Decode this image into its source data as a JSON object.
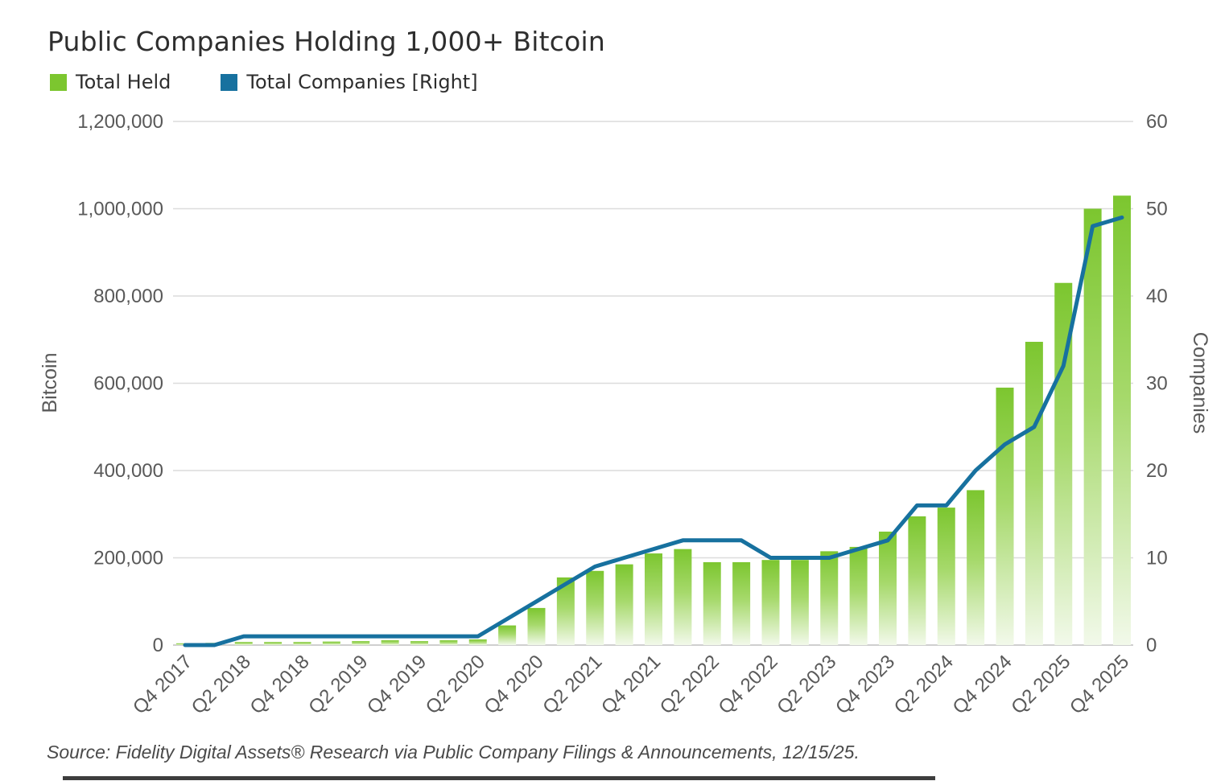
{
  "title": "Public Companies Holding 1,000+ Bitcoin",
  "legend": {
    "items": [
      {
        "label": "Total Held",
        "color": "#7cc62f"
      },
      {
        "label": "Total Companies [Right]",
        "color": "#17719f"
      }
    ]
  },
  "source": "Source: Fidelity Digital Assets® Research via Public Company Filings & Announcements, 12/15/25.",
  "colors": {
    "bar_top": "#7cc62f",
    "bar_mid": "#a6d96b",
    "bar_bottom": "#f2f9ea",
    "line": "#17719f",
    "gridline": "#dcdcdc",
    "baseline": "#bfbfbf",
    "tick_text": "#595959"
  },
  "chart_data": {
    "type": "bar",
    "subtype": "bar+line dual axis",
    "title": "Public Companies Holding 1,000+ Bitcoin",
    "grid": "horizontal",
    "legend_position": "top-left",
    "categories": [
      "Q4 2017",
      "Q1 2018",
      "Q2 2018",
      "Q3 2018",
      "Q4 2018",
      "Q1 2019",
      "Q2 2019",
      "Q3 2019",
      "Q4 2019",
      "Q1 2020",
      "Q2 2020",
      "Q3 2020",
      "Q4 2020",
      "Q1 2021",
      "Q2 2021",
      "Q3 2021",
      "Q4 2021",
      "Q1 2022",
      "Q2 2022",
      "Q3 2022",
      "Q4 2022",
      "Q1 2023",
      "Q2 2023",
      "Q3 2023",
      "Q4 2023",
      "Q1 2024",
      "Q2 2024",
      "Q3 2024",
      "Q4 2024",
      "Q1 2025",
      "Q2 2025",
      "Q3 2025",
      "Q4 2025"
    ],
    "x_tick_labels": [
      "Q4 2017",
      "Q4 2018",
      "Q4 2019",
      "Q4 2020",
      "Q4 2021",
      "Q4 2022",
      "Q4 2023",
      "Q4 2024",
      "Q4 2025"
    ],
    "x_label_every": 2,
    "series": [
      {
        "name": "Total Held",
        "type": "bar",
        "axis": "left",
        "color": "#7cc62f",
        "values": [
          4000,
          5000,
          7000,
          7000,
          7000,
          8000,
          9000,
          11000,
          9000,
          11000,
          13000,
          45000,
          85000,
          155000,
          170000,
          185000,
          210000,
          220000,
          190000,
          190000,
          195000,
          195000,
          215000,
          225000,
          260000,
          295000,
          315000,
          355000,
          590000,
          695000,
          830000,
          1000000,
          1030000
        ]
      },
      {
        "name": "Total Companies [Right]",
        "type": "line",
        "axis": "right",
        "color": "#17719f",
        "values": [
          0,
          0,
          1,
          1,
          1,
          1,
          1,
          1,
          1,
          1,
          1,
          3,
          5,
          7,
          9,
          10,
          11,
          12,
          12,
          12,
          10,
          10,
          10,
          11,
          12,
          16,
          16,
          20,
          23,
          25,
          32,
          48,
          49
        ]
      }
    ],
    "left_axis": {
      "title": "Bitcoin",
      "min": 0,
      "max": 1200000,
      "tick_interval": 200000,
      "tick_labels": [
        "0",
        "200,000",
        "400,000",
        "600,000",
        "800,000",
        "1,000,000",
        "1,200,000"
      ]
    },
    "right_axis": {
      "title": "Companies",
      "min": 0,
      "max": 60,
      "tick_interval": 10,
      "tick_labels": [
        "0",
        "10",
        "20",
        "30",
        "40",
        "50",
        "60"
      ]
    }
  }
}
